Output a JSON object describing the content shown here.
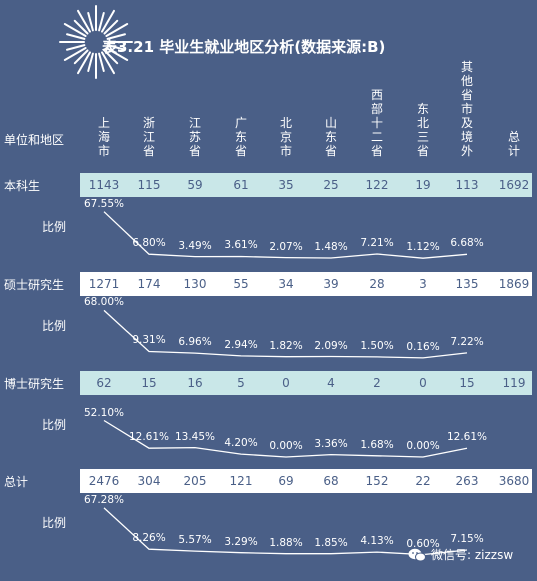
{
  "title": "表3.21 毕业生就业地区分析(数据来源:B)",
  "header_label": "单位和地区",
  "ratio_label": "比例",
  "watermark": "微信号: zizzsw",
  "colors": {
    "background": "#4a5f87",
    "band_light": "#c9e7e8",
    "band_white": "#ffffff",
    "text_on_band": "#4a5f87"
  },
  "chart_data": {
    "type": "table",
    "columns": [
      "上海市",
      "浙江省",
      "江苏省",
      "广东省",
      "北京市",
      "山东省",
      "西部十二省",
      "东北三省",
      "其他省市及境外",
      "总计"
    ],
    "rows": [
      {
        "label": "本科生",
        "values": [
          1143,
          115,
          59,
          61,
          35,
          25,
          122,
          19,
          113,
          1692
        ],
        "percentages": [
          "67.55%",
          "6.80%",
          "3.49%",
          "3.61%",
          "2.07%",
          "1.48%",
          "7.21%",
          "1.12%",
          "6.68%"
        ],
        "percent_values": [
          67.55,
          6.8,
          3.49,
          3.61,
          2.07,
          1.48,
          7.21,
          1.12,
          6.68
        ],
        "band": "light"
      },
      {
        "label": "硕士研究生",
        "values": [
          1271,
          174,
          130,
          55,
          34,
          39,
          28,
          3,
          135,
          1869
        ],
        "percentages": [
          "68.00%",
          "9.31%",
          "6.96%",
          "2.94%",
          "1.82%",
          "2.09%",
          "1.50%",
          "0.16%",
          "7.22%"
        ],
        "percent_values": [
          68.0,
          9.31,
          6.96,
          2.94,
          1.82,
          2.09,
          1.5,
          0.16,
          7.22
        ],
        "band": "white"
      },
      {
        "label": "博士研究生",
        "values": [
          62,
          15,
          16,
          5,
          0,
          4,
          2,
          0,
          15,
          119
        ],
        "percentages": [
          "52.10%",
          "12.61%",
          "13.45%",
          "4.20%",
          "0.00%",
          "3.36%",
          "1.68%",
          "0.00%",
          "12.61%"
        ],
        "percent_values": [
          52.1,
          12.61,
          13.45,
          4.2,
          0.0,
          3.36,
          1.68,
          0.0,
          12.61
        ],
        "band": "light"
      },
      {
        "label": "总计",
        "values": [
          2476,
          304,
          205,
          121,
          69,
          68,
          152,
          22,
          263,
          3680
        ],
        "percentages": [
          "67.28%",
          "8.26%",
          "5.57%",
          "3.29%",
          "1.88%",
          "1.85%",
          "4.13%",
          "0.60%",
          "7.15%"
        ],
        "percent_values": [
          67.28,
          8.26,
          5.57,
          3.29,
          1.88,
          1.85,
          4.13,
          0.6,
          7.15
        ],
        "band": "white"
      }
    ]
  }
}
